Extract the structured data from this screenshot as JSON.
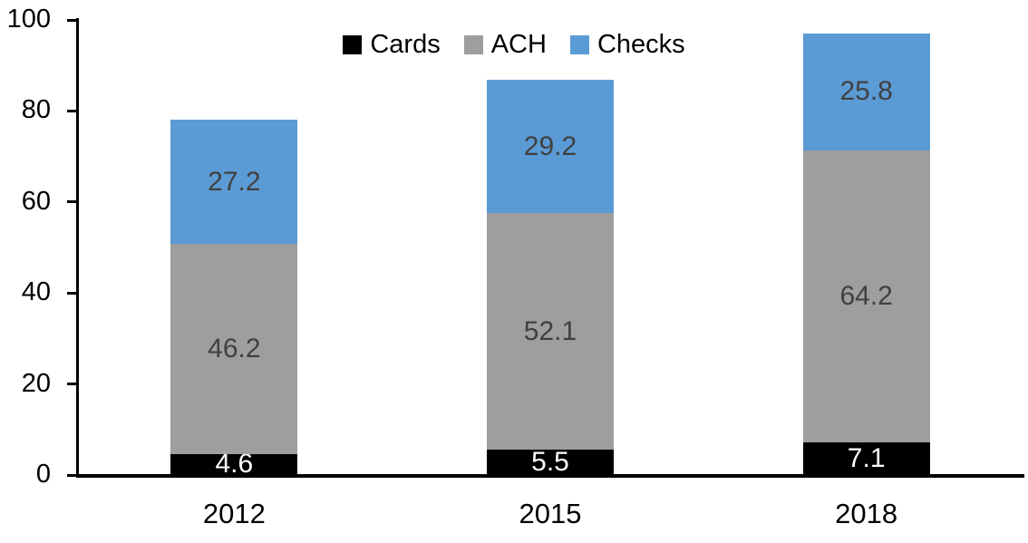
{
  "chart_data": {
    "type": "bar",
    "stacked": true,
    "title": "",
    "categories": [
      "2012",
      "2015",
      "2018"
    ],
    "series": [
      {
        "name": "Cards",
        "color": "#000000",
        "label_color": "#FFFFFF",
        "values": [
          4.6,
          5.5,
          7.1
        ]
      },
      {
        "name": "ACH",
        "color": "#9E9E9E",
        "label_color": "#404040",
        "values": [
          46.2,
          52.1,
          64.2
        ]
      },
      {
        "name": "Checks",
        "color": "#5B9BD5",
        "label_color": "#404040",
        "values": [
          27.2,
          29.2,
          25.8
        ]
      }
    ],
    "ylim": [
      0,
      100
    ],
    "yticks": [
      0,
      20,
      40,
      60,
      80,
      100
    ],
    "legend_position": "top-center",
    "grid": false,
    "axis_color": "#000000",
    "background_color": "#FFFFFF"
  }
}
